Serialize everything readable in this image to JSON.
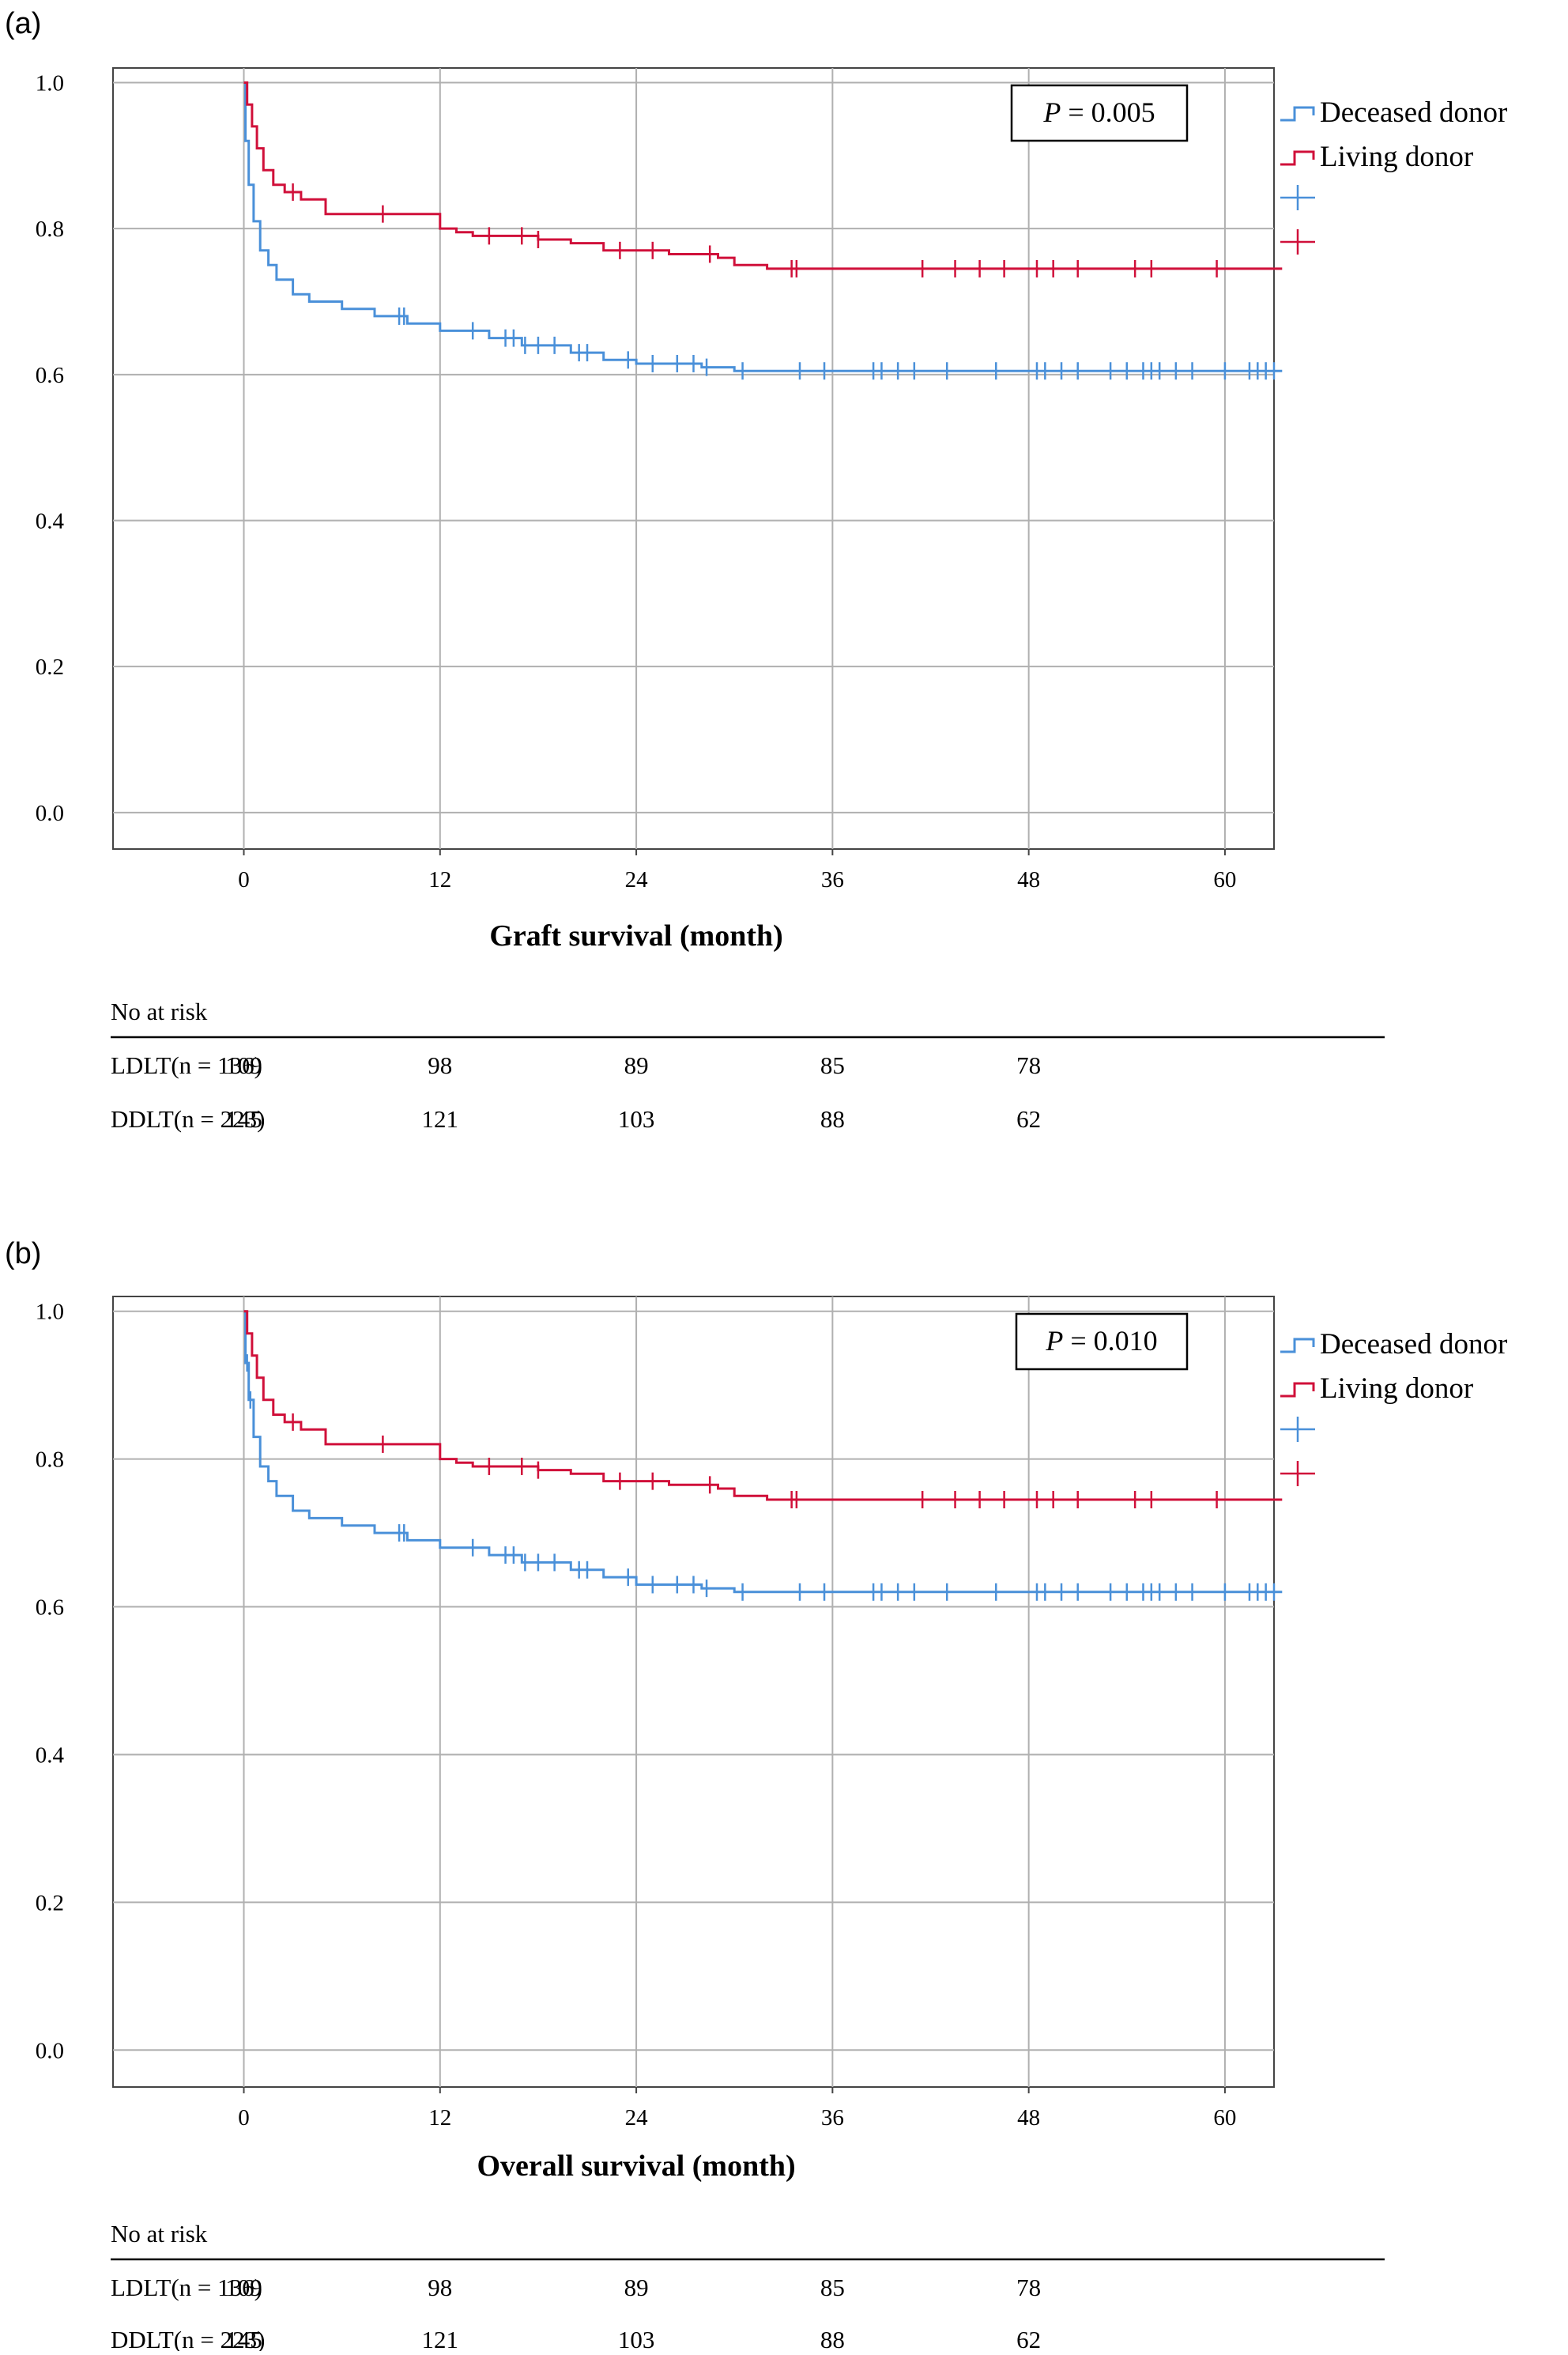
{
  "figure": {
    "panels": [
      {
        "label": "(a)",
        "p_value": {
          "symbol": "P",
          "text": " = 0.005"
        },
        "risk_table": {
          "header": "No at risk",
          "rows": [
            {
              "label": "LDLT(n = 136)",
              "values": [
                "109",
                "98",
                "89",
                "85",
                "78"
              ]
            },
            {
              "label": "DDLT(n = 223)",
              "values": [
                "145",
                "121",
                "103",
                "88",
                "62"
              ]
            }
          ]
        }
      },
      {
        "label": "(b)",
        "p_value": {
          "symbol": "P",
          "text": " = 0.010"
        },
        "risk_table": {
          "header": "No at risk",
          "rows": [
            {
              "label": "LDLT(n = 136)",
              "values": [
                "109",
                "98",
                "89",
                "85",
                "78"
              ]
            },
            {
              "label": "DDLT(n = 223)",
              "values": [
                "145",
                "121",
                "103",
                "88",
                "62"
              ]
            }
          ]
        }
      }
    ]
  },
  "chart_data": [
    {
      "type": "line",
      "title": "",
      "xlabel": "Graft survival (month)",
      "ylabel": "",
      "xlim": [
        -8,
        63
      ],
      "ylim": [
        -0.05,
        1.02
      ],
      "x_ticks": [
        0,
        12,
        24,
        36,
        48,
        60
      ],
      "y_ticks": [
        0.0,
        0.2,
        0.4,
        0.6,
        0.8,
        1.0
      ],
      "y_tick_labels": [
        "0.0",
        "0.2",
        "0.4",
        "0.6",
        "0.8",
        "1.0"
      ],
      "grid": true,
      "legend_position": "right",
      "legend": [
        "Deceased donor",
        "Living donor"
      ],
      "series": [
        {
          "name": "Deceased donor",
          "color": "#4a90d9",
          "x": [
            0,
            0.1,
            0.3,
            0.6,
            1.0,
            1.5,
            2.0,
            3.0,
            4.0,
            6.0,
            8.0,
            10.0,
            12.0,
            15.0,
            17.0,
            20.0,
            22.0,
            24.0,
            28.0,
            30.0,
            63.5
          ],
          "y": [
            1.0,
            0.92,
            0.86,
            0.81,
            0.77,
            0.75,
            0.73,
            0.71,
            0.7,
            0.69,
            0.68,
            0.67,
            0.66,
            0.65,
            0.64,
            0.63,
            0.62,
            0.615,
            0.61,
            0.605,
            0.605
          ],
          "censor_x": [
            9.5,
            9.8,
            14,
            16,
            16.5,
            17.2,
            18,
            19,
            20.5,
            21,
            23.5,
            25,
            26.5,
            27.5,
            28.3,
            30.5,
            34,
            35.5,
            38.5,
            39,
            40,
            41,
            43,
            46,
            48.5,
            49,
            50,
            51,
            53,
            54,
            55,
            55.5,
            56,
            57,
            58,
            60,
            61.5,
            62,
            62.5,
            63
          ]
        },
        {
          "name": "Living donor",
          "color": "#d0103a",
          "x": [
            0,
            0.2,
            0.5,
            0.8,
            1.2,
            1.8,
            2.5,
            3.5,
            5.0,
            12.0,
            13.0,
            14.0,
            18.0,
            20.0,
            22.0,
            26.0,
            29.0,
            30.0,
            32.0,
            63.5
          ],
          "y": [
            1.0,
            0.97,
            0.94,
            0.91,
            0.88,
            0.86,
            0.85,
            0.84,
            0.82,
            0.8,
            0.795,
            0.79,
            0.785,
            0.78,
            0.77,
            0.765,
            0.76,
            0.75,
            0.745,
            0.745
          ],
          "censor_x": [
            3.0,
            8.5,
            15,
            17,
            18,
            23,
            25,
            28.5,
            33.5,
            33.8,
            41.5,
            43.5,
            45,
            46.5,
            48.5,
            49.5,
            51,
            54.5,
            55.5,
            59.5
          ]
        }
      ]
    },
    {
      "type": "line",
      "title": "",
      "xlabel": "Overall survival (month)",
      "ylabel": "",
      "xlim": [
        -8,
        63
      ],
      "ylim": [
        -0.05,
        1.02
      ],
      "x_ticks": [
        0,
        12,
        24,
        36,
        48,
        60
      ],
      "y_ticks": [
        0.0,
        0.2,
        0.4,
        0.6,
        0.8,
        1.0
      ],
      "y_tick_labels": [
        "0.0",
        "0.2",
        "0.4",
        "0.6",
        "0.8",
        "1.0"
      ],
      "grid": true,
      "legend_position": "right",
      "legend": [
        "Deceased donor",
        "Living donor"
      ],
      "series": [
        {
          "name": "Deceased donor",
          "color": "#4a90d9",
          "x": [
            0,
            0.1,
            0.3,
            0.6,
            1.0,
            1.5,
            2.0,
            3.0,
            4.0,
            6.0,
            8.0,
            10.0,
            12.0,
            15.0,
            17.0,
            20.0,
            22.0,
            24.0,
            28.0,
            30.0,
            63.5
          ],
          "y": [
            1.0,
            0.93,
            0.88,
            0.83,
            0.79,
            0.77,
            0.75,
            0.73,
            0.72,
            0.71,
            0.7,
            0.69,
            0.68,
            0.67,
            0.66,
            0.65,
            0.64,
            0.63,
            0.625,
            0.62,
            0.62
          ],
          "censor_x": [
            0.2,
            0.4,
            9.5,
            9.8,
            14,
            16,
            16.5,
            17.2,
            18,
            19,
            20.5,
            21,
            23.5,
            25,
            26.5,
            27.5,
            28.3,
            30.5,
            34,
            35.5,
            38.5,
            39,
            40,
            41,
            43,
            46,
            48.5,
            49,
            50,
            51,
            53,
            54,
            55,
            55.5,
            56,
            57,
            58,
            60,
            61.5,
            62,
            62.5,
            63
          ]
        },
        {
          "name": "Living donor",
          "color": "#d0103a",
          "x": [
            0,
            0.2,
            0.5,
            0.8,
            1.2,
            1.8,
            2.5,
            3.5,
            5.0,
            12.0,
            13.0,
            14.0,
            18.0,
            20.0,
            22.0,
            26.0,
            29.0,
            30.0,
            32.0,
            63.5
          ],
          "y": [
            1.0,
            0.97,
            0.94,
            0.91,
            0.88,
            0.86,
            0.85,
            0.84,
            0.82,
            0.8,
            0.795,
            0.79,
            0.785,
            0.78,
            0.77,
            0.765,
            0.76,
            0.75,
            0.745,
            0.745
          ],
          "censor_x": [
            3.0,
            8.5,
            15,
            17,
            18,
            23,
            25,
            28.5,
            33.5,
            33.8,
            41.5,
            43.5,
            45,
            46.5,
            48.5,
            49.5,
            51,
            54.5,
            55.5,
            59.5
          ]
        }
      ]
    }
  ]
}
